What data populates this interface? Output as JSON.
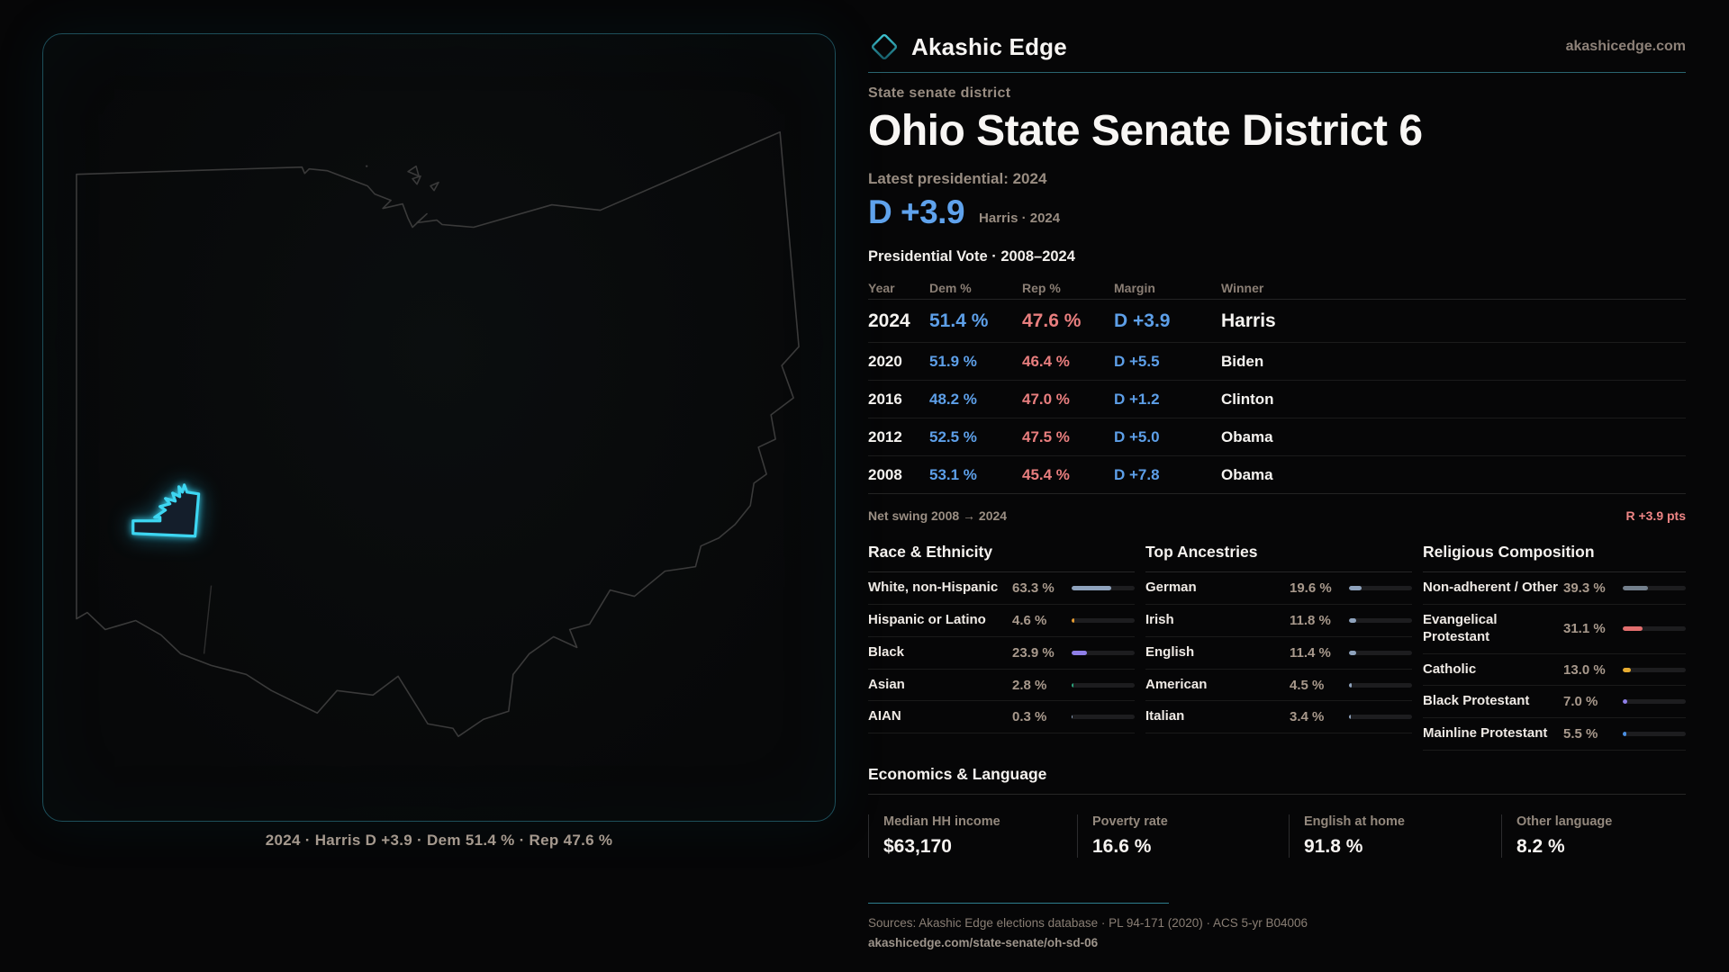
{
  "brand": {
    "name": "Akashic Edge",
    "domain": "akashicedge.com"
  },
  "map": {
    "caption": "2024 · Harris D +3.9 · Dem 51.4 % · Rep 47.6 %"
  },
  "profile": {
    "kicker": "State senate district",
    "title": "Ohio State Senate District 6",
    "latest_label": "Latest presidential: 2024",
    "margin_value": "D +3.9",
    "margin_context": "Harris · 2024",
    "table_title": "Presidential Vote · 2008–2024"
  },
  "vote_table": {
    "columns": [
      "Year",
      "Dem %",
      "Rep %",
      "Margin",
      "Winner"
    ],
    "rows": [
      {
        "year": "2024",
        "dem": "51.4 %",
        "rep": "47.6 %",
        "margin": "D +3.9",
        "winner": "Harris",
        "emphasis": true
      },
      {
        "year": "2020",
        "dem": "51.9 %",
        "rep": "46.4 %",
        "margin": "D +5.5",
        "winner": "Biden",
        "emphasis": false
      },
      {
        "year": "2016",
        "dem": "48.2 %",
        "rep": "47.0 %",
        "margin": "D +1.2",
        "winner": "Clinton",
        "emphasis": false
      },
      {
        "year": "2012",
        "dem": "52.5 %",
        "rep": "47.5 %",
        "margin": "D +5.0",
        "winner": "Obama",
        "emphasis": false
      },
      {
        "year": "2008",
        "dem": "53.1 %",
        "rep": "45.4 %",
        "margin": "D +7.8",
        "winner": "Obama",
        "emphasis": false
      }
    ]
  },
  "net_swing": {
    "label": "Net swing 2008 → 2024",
    "value": "R +3.9 pts"
  },
  "sections": [
    {
      "title": "Race & Ethnicity",
      "rows": [
        {
          "label": "White, non-Hispanic",
          "value": "63.3 %",
          "pct": 63.3,
          "color": "#8fa3bd"
        },
        {
          "label": "Hispanic or Latino",
          "value": "4.6 %",
          "pct": 4.6,
          "color": "#e39a31"
        },
        {
          "label": "Black",
          "value": "23.9 %",
          "pct": 23.9,
          "color": "#8f7fe8"
        },
        {
          "label": "Asian",
          "value": "2.8 %",
          "pct": 2.8,
          "color": "#2ba57c"
        },
        {
          "label": "AIAN",
          "value": "0.3 %",
          "pct": 0.3,
          "color": "#8fa3bd"
        }
      ]
    },
    {
      "title": "Top Ancestries",
      "rows": [
        {
          "label": "German",
          "value": "19.6 %",
          "pct": 19.6,
          "color": "#8fa3bd"
        },
        {
          "label": "Irish",
          "value": "11.8 %",
          "pct": 11.8,
          "color": "#8fa3bd"
        },
        {
          "label": "English",
          "value": "11.4 %",
          "pct": 11.4,
          "color": "#8fa3bd"
        },
        {
          "label": "American",
          "value": "4.5 %",
          "pct": 4.5,
          "color": "#8fa3bd"
        },
        {
          "label": "Italian",
          "value": "3.4 %",
          "pct": 3.4,
          "color": "#8fa3bd"
        }
      ]
    },
    {
      "title": "Religious Composition",
      "rows": [
        {
          "label": "Non-adherent / Other",
          "value": "39.3 %",
          "pct": 39.3,
          "color": "#737f8c"
        },
        {
          "label": "Evangelical Protestant",
          "value": "31.1 %",
          "pct": 31.1,
          "color": "#e26e6e"
        },
        {
          "label": "Catholic",
          "value": "13.0 %",
          "pct": 13.0,
          "color": "#e7ac31"
        },
        {
          "label": "Black Protestant",
          "value": "7.0 %",
          "pct": 7.0,
          "color": "#8f7fe8"
        },
        {
          "label": "Mainline Protestant",
          "value": "5.5 %",
          "pct": 5.5,
          "color": "#4b8fe2"
        }
      ]
    }
  ],
  "economics": {
    "title": "Economics & Language",
    "stats": [
      {
        "label": "Median HH income",
        "value": "$63,170"
      },
      {
        "label": "Poverty rate",
        "value": "16.6 %"
      },
      {
        "label": "English at home",
        "value": "91.8 %"
      },
      {
        "label": "Other language",
        "value": "8.2 %"
      }
    ]
  },
  "footer": {
    "sources": "Sources: Akashic Edge elections database · PL 94-171 (2020) · ACS 5-yr B04006",
    "url": "akashicedge.com/state-senate/oh-sd-06"
  },
  "colors": {
    "dem": "#5d9fe8",
    "rep": "#e87e7e",
    "accent_teal": "#2a6570",
    "district_cyan": "#3dd6f2"
  }
}
